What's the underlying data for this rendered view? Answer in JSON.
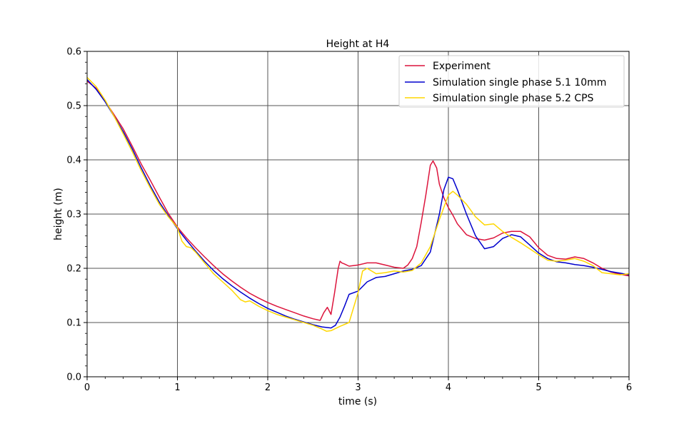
{
  "chart_data": {
    "type": "line",
    "title": "Height at H4",
    "xlabel": "time (s)",
    "ylabel": "height (m)",
    "xlim": [
      0,
      6
    ],
    "ylim": [
      0,
      0.6
    ],
    "xticks": [
      "0",
      "1",
      "2",
      "3",
      "4",
      "5",
      "6"
    ],
    "yticks": [
      "0.0",
      "0.1",
      "0.2",
      "0.3",
      "0.4",
      "0.5",
      "0.6"
    ],
    "grid": true,
    "legend_position": "top-right",
    "series": [
      {
        "name": "Experiment",
        "color": "#dc143c",
        "x": [
          0,
          0.1,
          0.2,
          0.3,
          0.4,
          0.5,
          0.6,
          0.7,
          0.8,
          0.9,
          1.0,
          1.1,
          1.2,
          1.3,
          1.4,
          1.5,
          1.6,
          1.7,
          1.8,
          1.9,
          2.0,
          2.1,
          2.2,
          2.3,
          2.4,
          2.5,
          2.58,
          2.62,
          2.66,
          2.7,
          2.74,
          2.78,
          2.8,
          2.82,
          2.85,
          2.9,
          3.0,
          3.1,
          3.2,
          3.3,
          3.4,
          3.5,
          3.55,
          3.6,
          3.65,
          3.7,
          3.75,
          3.8,
          3.83,
          3.87,
          3.9,
          3.95,
          4.0,
          4.05,
          4.1,
          4.2,
          4.3,
          4.4,
          4.5,
          4.6,
          4.7,
          4.8,
          4.9,
          5.0,
          5.1,
          5.2,
          5.3,
          5.4,
          5.5,
          5.6,
          5.7,
          5.8,
          5.9,
          6.0
        ],
        "y": [
          0.545,
          0.532,
          0.508,
          0.483,
          0.457,
          0.425,
          0.392,
          0.362,
          0.331,
          0.301,
          0.276,
          0.256,
          0.238,
          0.221,
          0.205,
          0.19,
          0.177,
          0.165,
          0.154,
          0.145,
          0.137,
          0.13,
          0.124,
          0.118,
          0.112,
          0.107,
          0.104,
          0.118,
          0.128,
          0.115,
          0.155,
          0.2,
          0.213,
          0.21,
          0.208,
          0.204,
          0.206,
          0.21,
          0.21,
          0.206,
          0.202,
          0.2,
          0.206,
          0.218,
          0.24,
          0.285,
          0.335,
          0.39,
          0.398,
          0.385,
          0.355,
          0.33,
          0.312,
          0.298,
          0.282,
          0.262,
          0.255,
          0.252,
          0.256,
          0.265,
          0.268,
          0.268,
          0.258,
          0.238,
          0.224,
          0.218,
          0.217,
          0.221,
          0.218,
          0.21,
          0.2,
          0.193,
          0.189,
          0.186
        ]
      },
      {
        "name": "Simulation single phase 5.1 10mm",
        "color": "#0000cd",
        "x": [
          0,
          0.1,
          0.2,
          0.3,
          0.4,
          0.5,
          0.6,
          0.7,
          0.8,
          0.9,
          1.0,
          1.1,
          1.2,
          1.3,
          1.4,
          1.5,
          1.6,
          1.7,
          1.8,
          1.9,
          2.0,
          2.1,
          2.2,
          2.3,
          2.4,
          2.5,
          2.6,
          2.7,
          2.75,
          2.8,
          2.85,
          2.9,
          3.0,
          3.1,
          3.2,
          3.3,
          3.4,
          3.5,
          3.6,
          3.7,
          3.8,
          3.9,
          3.95,
          4.0,
          4.05,
          4.1,
          4.2,
          4.3,
          4.4,
          4.5,
          4.6,
          4.7,
          4.8,
          4.9,
          5.0,
          5.1,
          5.2,
          5.3,
          5.4,
          5.5,
          5.6,
          5.7,
          5.8,
          5.9,
          6.0
        ],
        "y": [
          0.548,
          0.53,
          0.507,
          0.48,
          0.452,
          0.42,
          0.385,
          0.352,
          0.322,
          0.297,
          0.273,
          0.252,
          0.232,
          0.213,
          0.196,
          0.181,
          0.168,
          0.156,
          0.145,
          0.135,
          0.126,
          0.119,
          0.112,
          0.106,
          0.101,
          0.096,
          0.092,
          0.09,
          0.095,
          0.11,
          0.13,
          0.152,
          0.158,
          0.175,
          0.183,
          0.185,
          0.19,
          0.195,
          0.198,
          0.205,
          0.23,
          0.3,
          0.345,
          0.368,
          0.365,
          0.345,
          0.3,
          0.26,
          0.236,
          0.24,
          0.255,
          0.262,
          0.258,
          0.243,
          0.228,
          0.218,
          0.212,
          0.21,
          0.207,
          0.205,
          0.202,
          0.198,
          0.194,
          0.191,
          0.188
        ]
      },
      {
        "name": "Simulation single phase 5.2 CPS",
        "color": "#ffd700",
        "x": [
          0,
          0.1,
          0.2,
          0.3,
          0.4,
          0.5,
          0.6,
          0.7,
          0.8,
          0.9,
          1.0,
          1.05,
          1.1,
          1.15,
          1.2,
          1.3,
          1.4,
          1.5,
          1.6,
          1.7,
          1.75,
          1.8,
          1.9,
          2.0,
          2.1,
          2.2,
          2.3,
          2.4,
          2.5,
          2.6,
          2.65,
          2.7,
          2.8,
          2.9,
          3.0,
          3.05,
          3.1,
          3.2,
          3.3,
          3.4,
          3.5,
          3.6,
          3.7,
          3.8,
          3.9,
          4.0,
          4.05,
          4.1,
          4.2,
          4.3,
          4.4,
          4.5,
          4.6,
          4.7,
          4.8,
          4.9,
          5.0,
          5.1,
          5.2,
          5.3,
          5.4,
          5.5,
          5.6,
          5.7,
          5.8,
          5.9,
          6.0
        ],
        "y": [
          0.552,
          0.535,
          0.51,
          0.48,
          0.448,
          0.415,
          0.38,
          0.348,
          0.318,
          0.295,
          0.275,
          0.25,
          0.24,
          0.238,
          0.23,
          0.21,
          0.19,
          0.175,
          0.16,
          0.142,
          0.138,
          0.14,
          0.13,
          0.122,
          0.115,
          0.11,
          0.105,
          0.1,
          0.095,
          0.088,
          0.084,
          0.085,
          0.093,
          0.1,
          0.155,
          0.195,
          0.2,
          0.19,
          0.192,
          0.195,
          0.193,
          0.196,
          0.21,
          0.24,
          0.29,
          0.335,
          0.342,
          0.335,
          0.318,
          0.295,
          0.28,
          0.282,
          0.268,
          0.257,
          0.247,
          0.236,
          0.225,
          0.215,
          0.213,
          0.215,
          0.218,
          0.213,
          0.205,
          0.192,
          0.19,
          0.188,
          0.19
        ]
      }
    ]
  }
}
